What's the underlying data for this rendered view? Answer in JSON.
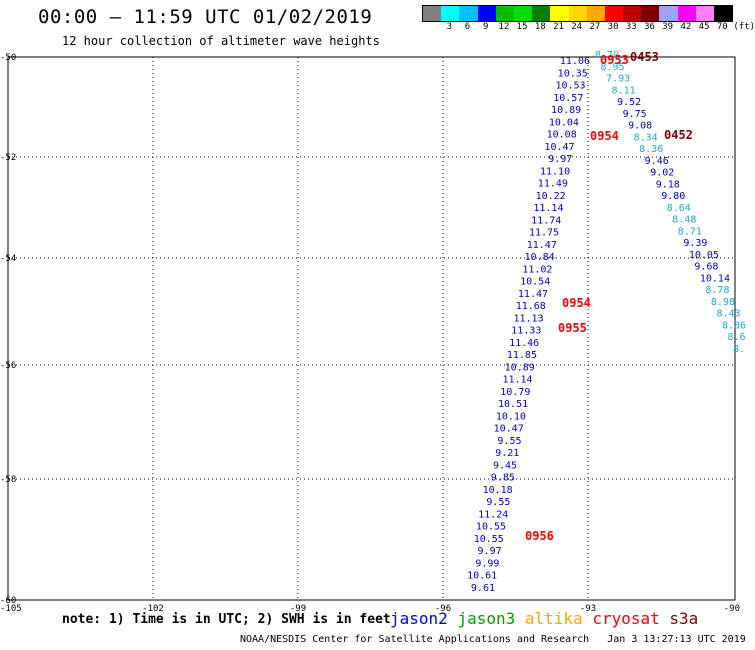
{
  "header": {
    "title": "00:00 – 11:59 UTC 01/02/2019",
    "subtitle": "12 hour collection of altimeter wave heights"
  },
  "legend": {
    "unit": "(ft)",
    "swatches": [
      {
        "color": "#808080",
        "label": ""
      },
      {
        "color": "#00ffff",
        "label": "3"
      },
      {
        "color": "#00bfff",
        "label": "6"
      },
      {
        "color": "#0000ff",
        "label": "9"
      },
      {
        "color": "#00bf00",
        "label": "12"
      },
      {
        "color": "#00e000",
        "label": "15"
      },
      {
        "color": "#008000",
        "label": "18"
      },
      {
        "color": "#ffff00",
        "label": "21"
      },
      {
        "color": "#ffd700",
        "label": "24"
      },
      {
        "color": "#ffa500",
        "label": "27"
      },
      {
        "color": "#ff0000",
        "label": "30"
      },
      {
        "color": "#c00000",
        "label": "33"
      },
      {
        "color": "#800000",
        "label": "36"
      },
      {
        "color": "#a0a0ff",
        "label": "39"
      },
      {
        "color": "#ff00ff",
        "label": "42"
      },
      {
        "color": "#ff80ff",
        "label": "45"
      },
      {
        "color": "#000000",
        "label": "70"
      }
    ]
  },
  "axes": {
    "lon_ticks": [
      "-105",
      "-102",
      "-99",
      "-96",
      "-93",
      "-90"
    ],
    "lat_ticks": [
      "-50",
      "-52",
      "-54",
      "-56",
      "-58",
      "-60"
    ]
  },
  "track_blue_values": [
    "11.06",
    "10.35",
    "10.53",
    "10.57",
    "10.89",
    "10.04",
    "10.08",
    "10.47",
    "9.97",
    "11.10",
    "11.49",
    "10.22",
    "11.14",
    "11.74",
    "11.75",
    "11.47",
    "10.84",
    "11.02",
    "10.54",
    "11.47",
    "11.68",
    "11.13",
    "11.33",
    "11.46",
    "11.85",
    "10.89",
    "11.14",
    "10.79",
    "10.51",
    "10.10",
    "10.47",
    "9.55",
    "9.21",
    "9.45",
    "9.85",
    "10.18",
    "9.55",
    "11.24",
    "10.55",
    "10.55",
    "9.97",
    "9.99",
    "10.61",
    "9.61"
  ],
  "track_right_values": [
    {
      "v": "8.70",
      "c": "#1ea8d8"
    },
    {
      "v": "8.95",
      "c": "#1ea8d8"
    },
    {
      "v": "7.93",
      "c": "#1ea8d8"
    },
    {
      "v": "8.11",
      "c": "#1ea8d8"
    },
    {
      "v": "9.52",
      "c": "#0000c8"
    },
    {
      "v": "9.75",
      "c": "#0000c8"
    },
    {
      "v": "9.08",
      "c": "#0000c8"
    },
    {
      "v": "8.34",
      "c": "#1ea8d8"
    },
    {
      "v": "8.36",
      "c": "#1ea8d8"
    },
    {
      "v": "9.46",
      "c": "#0000c8"
    },
    {
      "v": "9.02",
      "c": "#0000c8"
    },
    {
      "v": "9.18",
      "c": "#0000c8"
    },
    {
      "v": "9.80",
      "c": "#0000c8"
    },
    {
      "v": "8.64",
      "c": "#1ea8d8"
    },
    {
      "v": "8.48",
      "c": "#1ea8d8"
    },
    {
      "v": "8.71",
      "c": "#1ea8d8"
    },
    {
      "v": "9.39",
      "c": "#0000c8"
    },
    {
      "v": "10.05",
      "c": "#0000c8"
    },
    {
      "v": "9.68",
      "c": "#0000c8"
    },
    {
      "v": "10.14",
      "c": "#0000c8"
    },
    {
      "v": "8.78",
      "c": "#1ea8d8"
    },
    {
      "v": "8.98",
      "c": "#1ea8d8"
    },
    {
      "v": "8.43",
      "c": "#1ea8d8"
    },
    {
      "v": "8.86",
      "c": "#1ea8d8"
    },
    {
      "v": "8.6",
      "c": "#1ea8d8"
    },
    {
      "v": "8.",
      "c": "#1ea8d8"
    }
  ],
  "time_labels": [
    {
      "text": "0953",
      "color": "#ff0000"
    },
    {
      "text": "0453",
      "color": "#800000"
    },
    {
      "text": "0954",
      "color": "#ff0000"
    },
    {
      "text": "0452",
      "color": "#800000"
    },
    {
      "text": "0954",
      "color": "#ff0000"
    },
    {
      "text": "0955",
      "color": "#ff0000"
    },
    {
      "text": "0956",
      "color": "#ff0000"
    }
  ],
  "footer": {
    "note": "note: 1) Time is in UTC; 2) SWH is in feet",
    "satellites": [
      {
        "name": "jason2",
        "color": "#0000ff"
      },
      {
        "name": "jason3",
        "color": "#00a000"
      },
      {
        "name": "altika",
        "color": "#ffa500"
      },
      {
        "name": "cryosat",
        "color": "#ff0000"
      },
      {
        "name": "s3a",
        "color": "#800000"
      }
    ],
    "credit": "NOAA/NESDIS Center for Satellite Applications and Research",
    "timestamp": "Jan  3 13:27:13 UTC 2019"
  }
}
